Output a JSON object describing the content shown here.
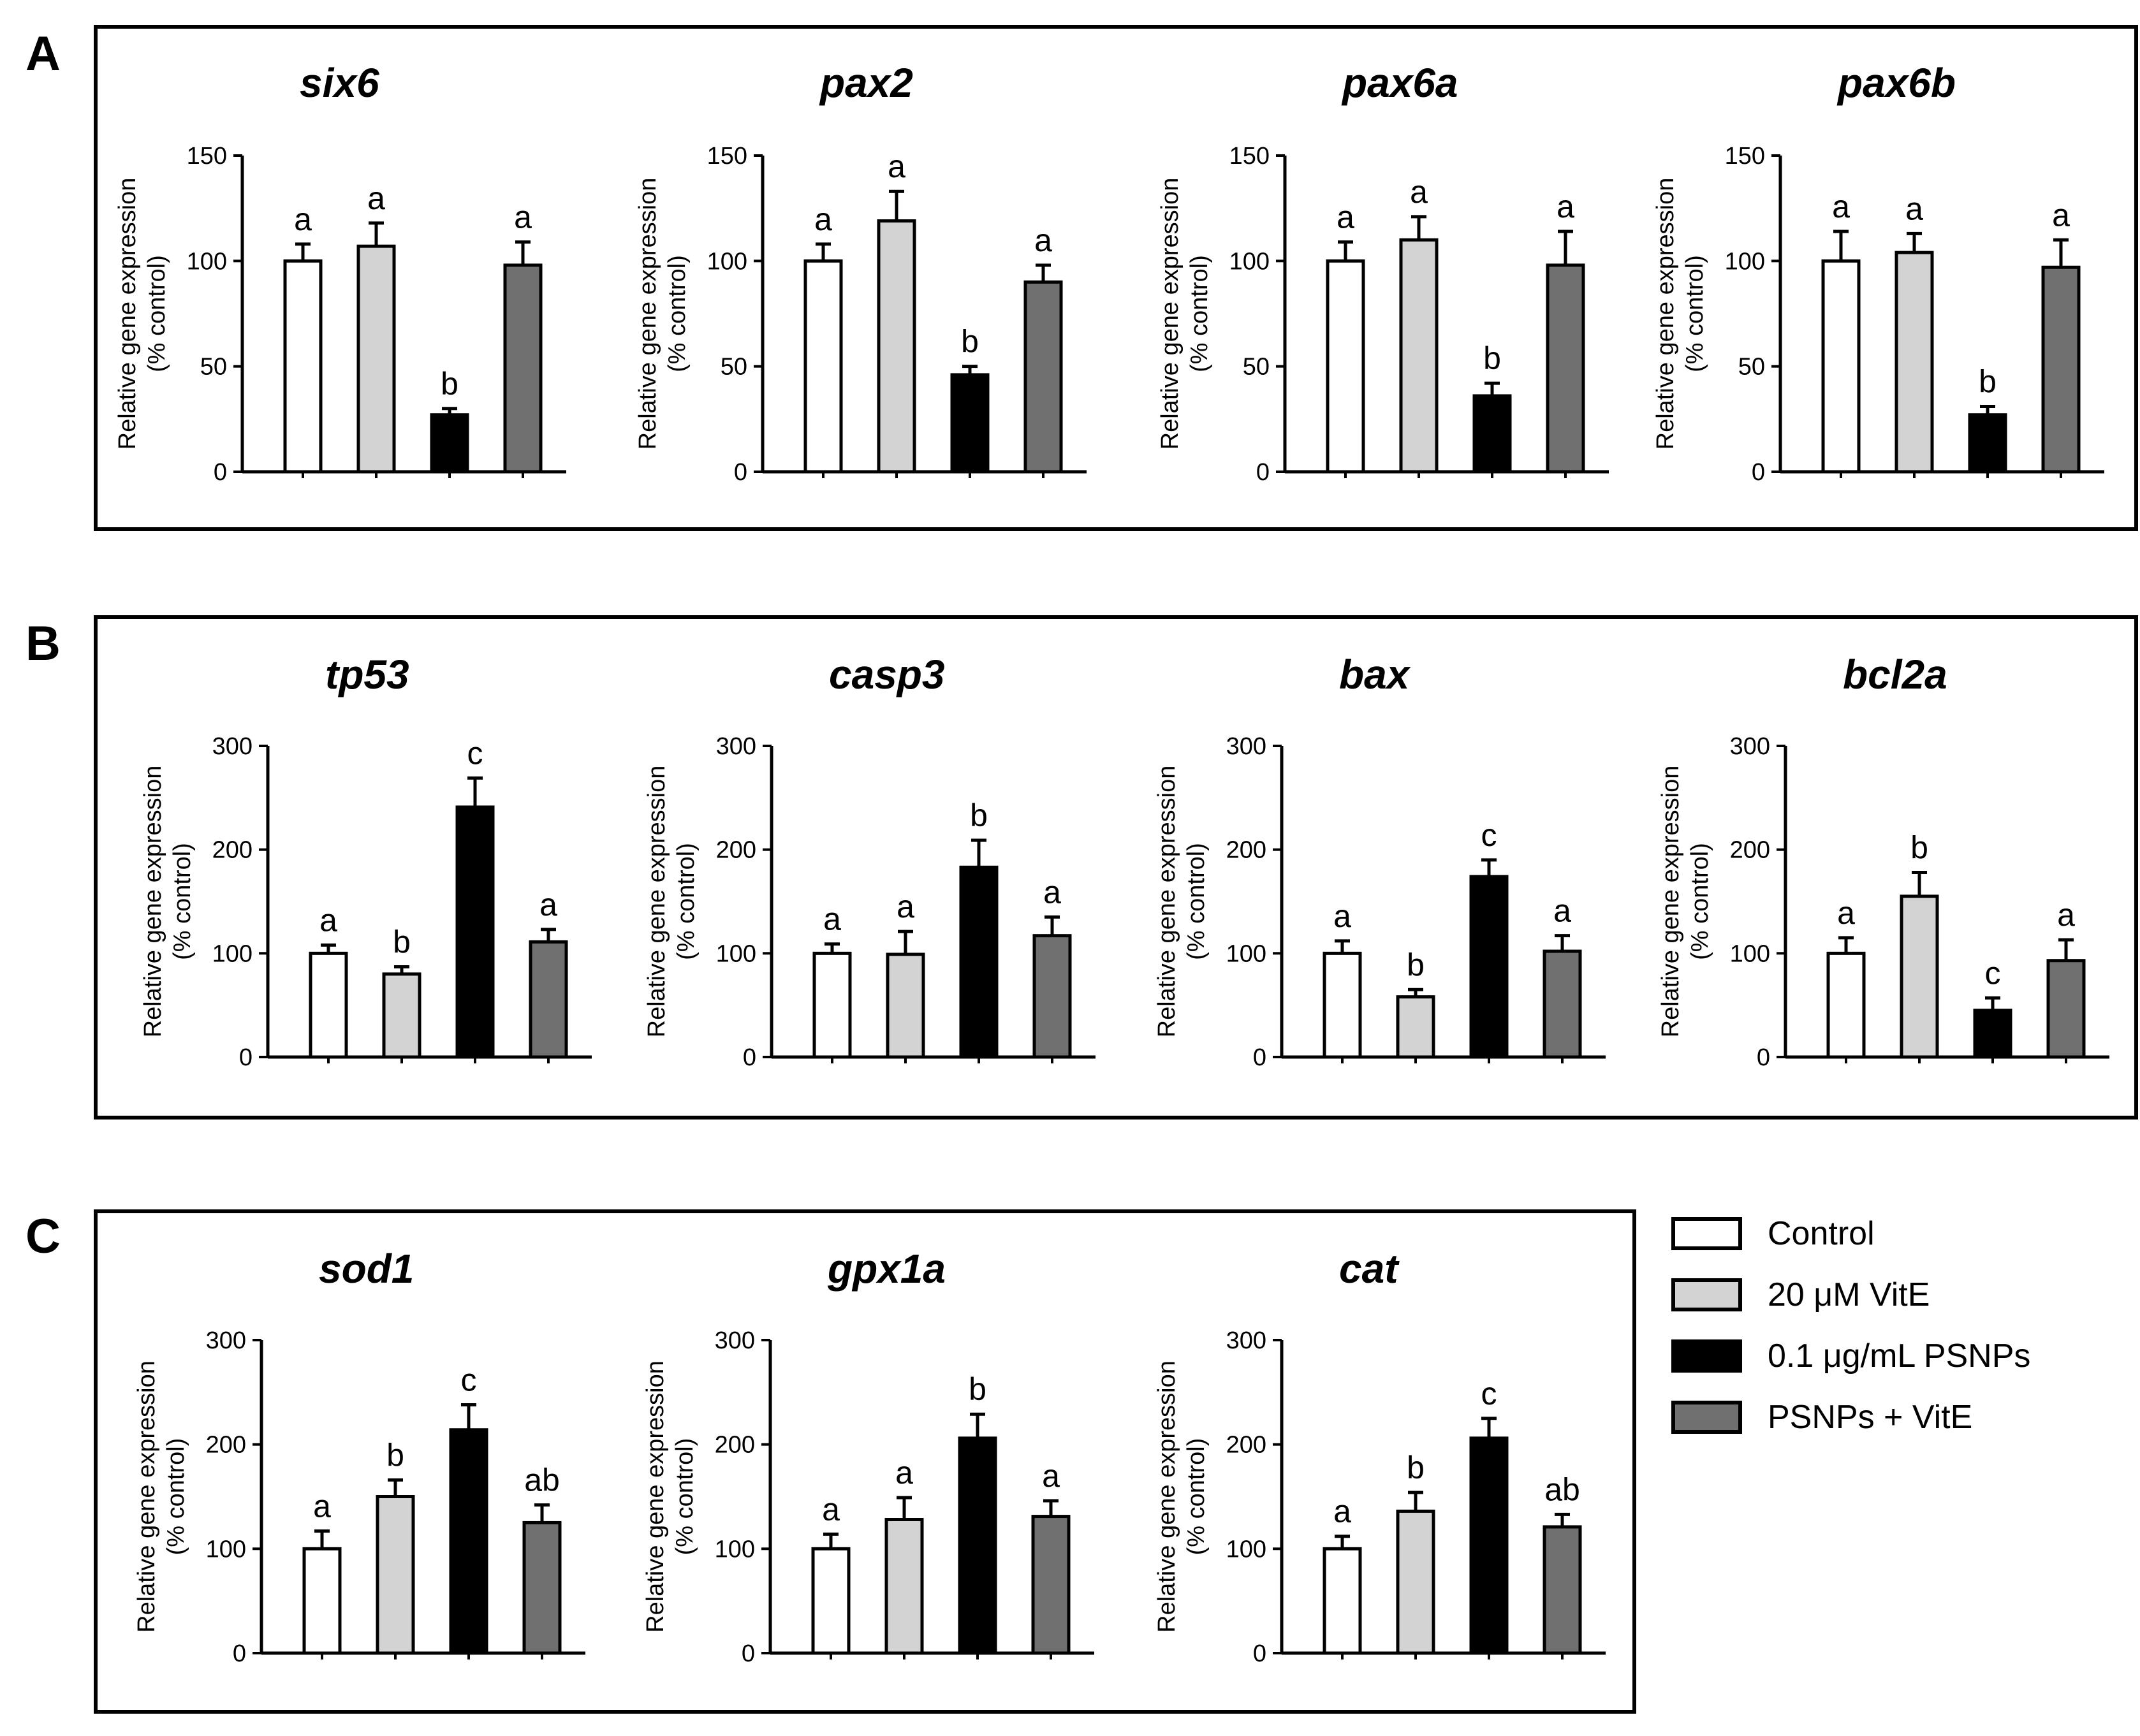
{
  "figure": {
    "treatments": [
      "Control",
      "20 μM VitE",
      "0.1 μg/mL PSNPs",
      "PSNPs + VitE"
    ],
    "colors": {
      "Control": "#ffffff",
      "20 μM VitE": "#d3d3d3",
      "0.1 μg/mL PSNPs": "#000000",
      "PSNPs + VitE": "#707070"
    },
    "panels": [
      {
        "label": "A"
      },
      {
        "label": "B"
      },
      {
        "label": "C"
      }
    ],
    "legend": {
      "items": [
        "Control",
        "20 μM VitE",
        "0.1 μg/mL PSNPs",
        "PSNPs + VitE"
      ]
    }
  },
  "chart_data": [
    {
      "type": "bar",
      "panel": "A",
      "title": "six6",
      "ylabel": "Relative gene expression\n(% control)",
      "ylim": [
        0,
        150
      ],
      "yticks": [
        0,
        50,
        100,
        150
      ],
      "categories": [
        "Control",
        "20 μM VitE",
        "0.1 μg/mL PSNPs",
        "PSNPs + VitE"
      ],
      "values": [
        100,
        107,
        27,
        98
      ],
      "errors": [
        8,
        11,
        3,
        11
      ],
      "significance": [
        "a",
        "a",
        "b",
        "a"
      ]
    },
    {
      "type": "bar",
      "panel": "A",
      "title": "pax2",
      "ylabel": "Relative gene expression\n(% control)",
      "ylim": [
        0,
        150
      ],
      "yticks": [
        0,
        50,
        100,
        150
      ],
      "categories": [
        "Control",
        "20 μM VitE",
        "0.1 μg/mL PSNPs",
        "PSNPs + VitE"
      ],
      "values": [
        100,
        119,
        46,
        90
      ],
      "errors": [
        8,
        14,
        4,
        8
      ],
      "significance": [
        "a",
        "a",
        "b",
        "a"
      ]
    },
    {
      "type": "bar",
      "panel": "A",
      "title": "pax6a",
      "ylabel": "Relative gene expression\n(% control)",
      "ylim": [
        0,
        150
      ],
      "yticks": [
        0,
        50,
        100,
        150
      ],
      "categories": [
        "Control",
        "20 μM VitE",
        "0.1 μg/mL PSNPs",
        "PSNPs + VitE"
      ],
      "values": [
        100,
        110,
        36,
        98
      ],
      "errors": [
        9,
        11,
        6,
        16
      ],
      "significance": [
        "a",
        "a",
        "b",
        "a"
      ]
    },
    {
      "type": "bar",
      "panel": "A",
      "title": "pax6b",
      "ylabel": "Relative gene expression\n(% control)",
      "ylim": [
        0,
        150
      ],
      "yticks": [
        0,
        50,
        100,
        150
      ],
      "categories": [
        "Control",
        "20 μM VitE",
        "0.1 μg/mL PSNPs",
        "PSNPs + VitE"
      ],
      "values": [
        100,
        104,
        27,
        97
      ],
      "errors": [
        14,
        9,
        4,
        13
      ],
      "significance": [
        "a",
        "a",
        "b",
        "a"
      ]
    },
    {
      "type": "bar",
      "panel": "B",
      "title": "tp53",
      "ylabel": "Relative gene expression\n(% control)",
      "ylim": [
        0,
        300
      ],
      "yticks": [
        0,
        100,
        200,
        300
      ],
      "categories": [
        "Control",
        "20 μM VitE",
        "0.1 μg/mL PSNPs",
        "PSNPs + VitE"
      ],
      "values": [
        100,
        80,
        241,
        111
      ],
      "errors": [
        8,
        7,
        28,
        12
      ],
      "significance": [
        "a",
        "b",
        "c",
        "a"
      ]
    },
    {
      "type": "bar",
      "panel": "B",
      "title": "casp3",
      "ylabel": "Relative gene expression\n(% control)",
      "ylim": [
        0,
        300
      ],
      "yticks": [
        0,
        100,
        200,
        300
      ],
      "categories": [
        "Control",
        "20 μM VitE",
        "0.1 μg/mL PSNPs",
        "PSNPs + VitE"
      ],
      "values": [
        100,
        99,
        183,
        117
      ],
      "errors": [
        9,
        22,
        26,
        18
      ],
      "significance": [
        "a",
        "a",
        "b",
        "a"
      ]
    },
    {
      "type": "bar",
      "panel": "B",
      "title": "bax",
      "ylabel": "Relative gene expression\n(% control)",
      "ylim": [
        0,
        300
      ],
      "yticks": [
        0,
        100,
        200,
        300
      ],
      "categories": [
        "Control",
        "20 μM VitE",
        "0.1 μg/mL PSNPs",
        "PSNPs + VitE"
      ],
      "values": [
        100,
        58,
        174,
        102
      ],
      "errors": [
        12,
        7,
        16,
        15
      ],
      "significance": [
        "a",
        "b",
        "c",
        "a"
      ]
    },
    {
      "type": "bar",
      "panel": "B",
      "title": "bcl2a",
      "ylabel": "Relative gene expression\n(% control)",
      "ylim": [
        0,
        300
      ],
      "yticks": [
        0,
        100,
        200,
        300
      ],
      "categories": [
        "Control",
        "20 μM VitE",
        "0.1 μg/mL PSNPs",
        "PSNPs + VitE"
      ],
      "values": [
        100,
        155,
        45,
        93
      ],
      "errors": [
        15,
        23,
        12,
        20
      ],
      "significance": [
        "a",
        "b",
        "c",
        "a"
      ]
    },
    {
      "type": "bar",
      "panel": "C",
      "title": "sod1",
      "ylabel": "Relative gene expression\n(% control)",
      "ylim": [
        0,
        300
      ],
      "yticks": [
        0,
        100,
        200,
        300
      ],
      "categories": [
        "Control",
        "20 μM VitE",
        "0.1 μg/mL PSNPs",
        "PSNPs + VitE"
      ],
      "values": [
        100,
        150,
        214,
        125
      ],
      "errors": [
        17,
        16,
        24,
        17
      ],
      "significance": [
        "a",
        "b",
        "c",
        "ab"
      ]
    },
    {
      "type": "bar",
      "panel": "C",
      "title": "gpx1a",
      "ylabel": "Relative gene expression\n(% control)",
      "ylim": [
        0,
        300
      ],
      "yticks": [
        0,
        100,
        200,
        300
      ],
      "categories": [
        "Control",
        "20 μM VitE",
        "0.1 μg/mL PSNPs",
        "PSNPs + VitE"
      ],
      "values": [
        100,
        128,
        206,
        131
      ],
      "errors": [
        14,
        21,
        23,
        15
      ],
      "significance": [
        "a",
        "a",
        "b",
        "a"
      ]
    },
    {
      "type": "bar",
      "panel": "C",
      "title": "cat",
      "ylabel": "Relative gene expression\n(% control)",
      "ylim": [
        0,
        300
      ],
      "yticks": [
        0,
        100,
        200,
        300
      ],
      "categories": [
        "Control",
        "20 μM VitE",
        "0.1 μg/mL PSNPs",
        "PSNPs + VitE"
      ],
      "values": [
        100,
        136,
        206,
        121
      ],
      "errors": [
        12,
        18,
        19,
        12
      ],
      "significance": [
        "a",
        "b",
        "c",
        "ab"
      ]
    }
  ]
}
